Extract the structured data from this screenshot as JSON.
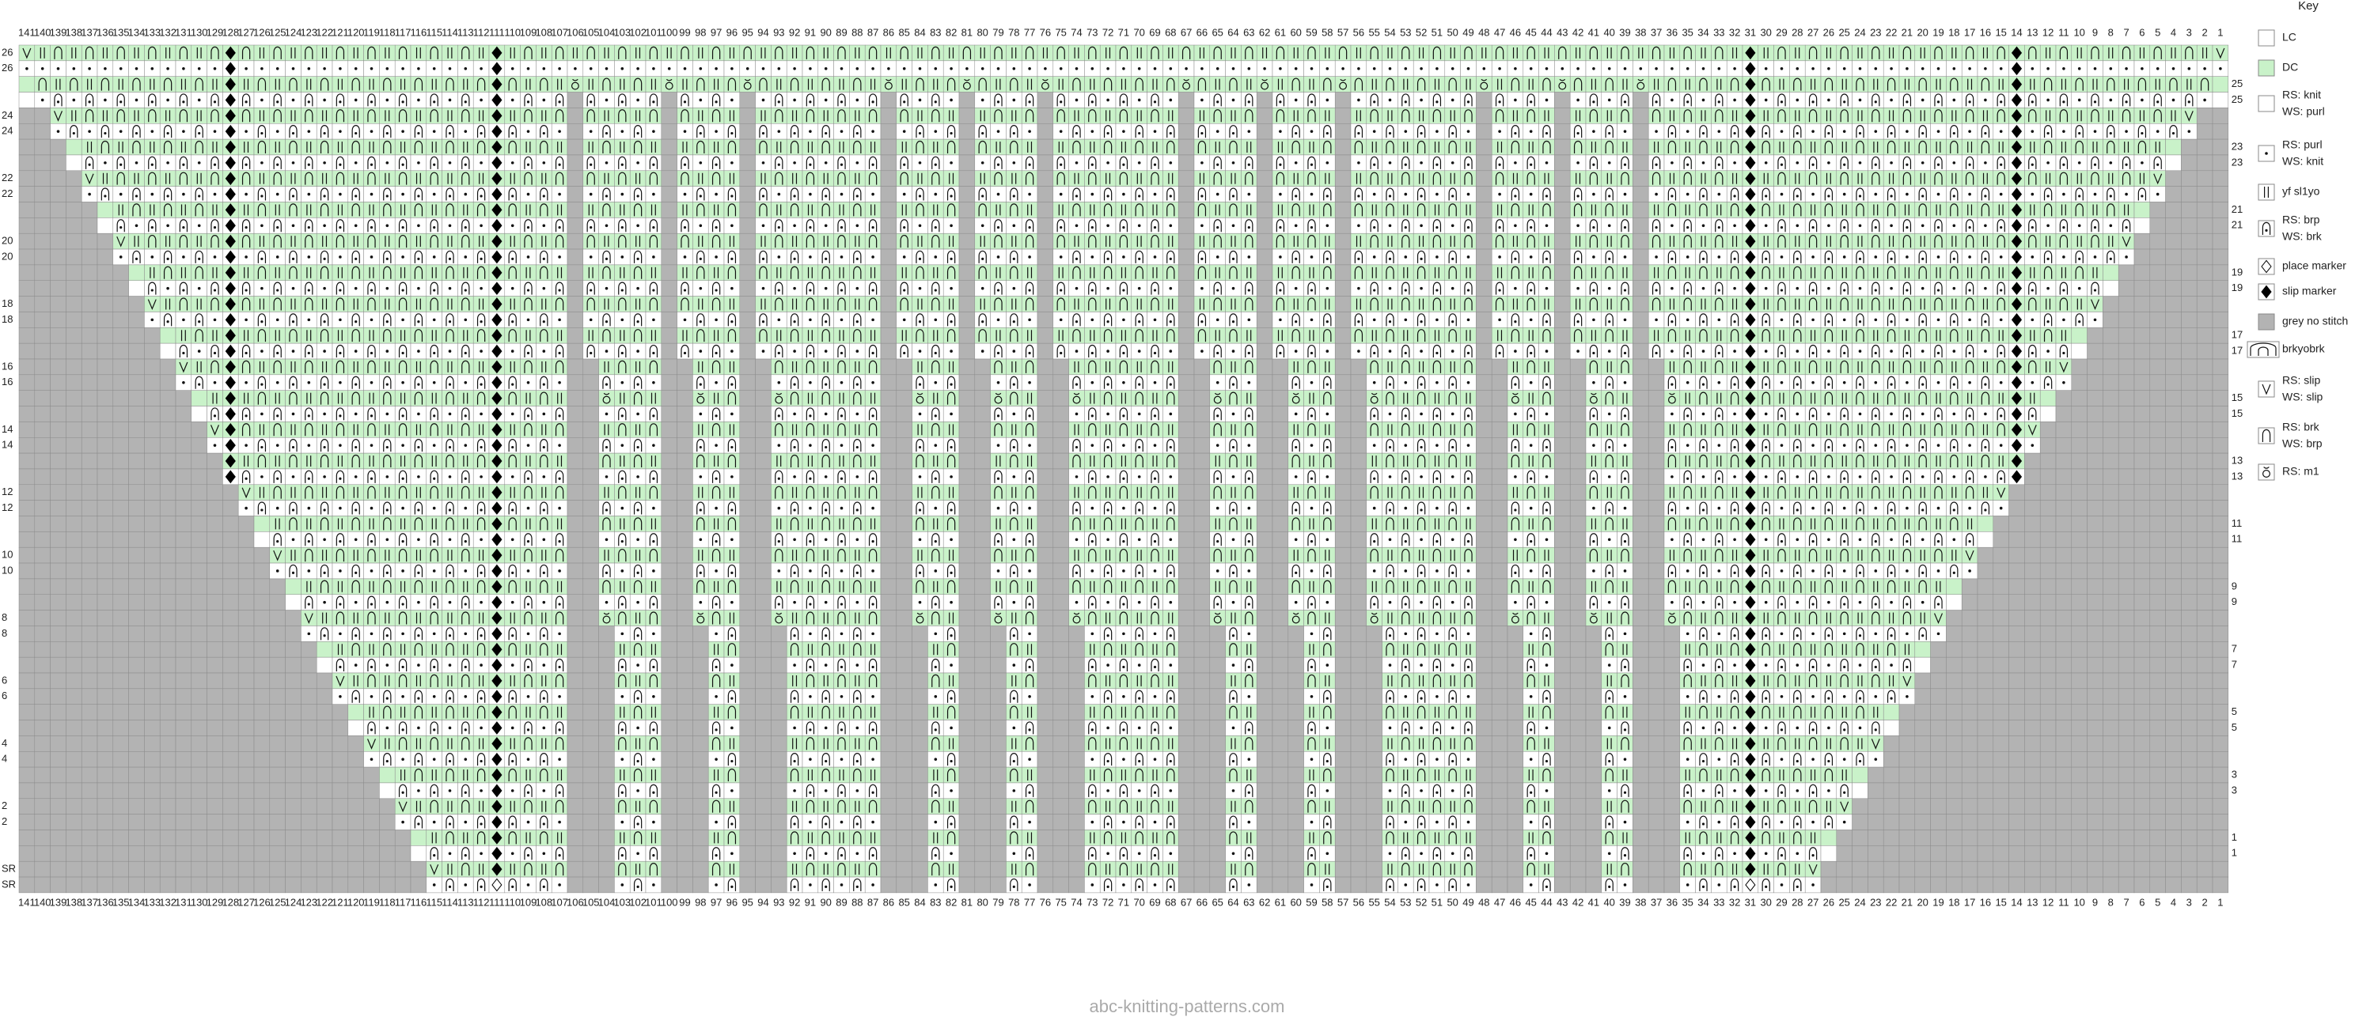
{
  "columns": [
    141,
    140,
    139,
    138,
    137,
    136,
    135,
    134,
    133,
    132,
    131,
    130,
    129,
    128,
    127,
    126,
    125,
    124,
    123,
    122,
    121,
    120,
    119,
    118,
    117,
    116,
    115,
    114,
    113,
    112,
    111,
    110,
    109,
    108,
    107,
    106,
    105,
    104,
    103,
    102,
    101,
    100,
    99,
    98,
    97,
    96,
    95,
    94,
    93,
    92,
    91,
    90,
    89,
    88,
    87,
    86,
    85,
    84,
    83,
    82,
    81,
    80,
    79,
    78,
    77,
    76,
    75,
    74,
    73,
    72,
    71,
    70,
    69,
    68,
    67,
    66,
    65,
    64,
    63,
    62,
    61,
    60,
    59,
    58,
    57,
    56,
    55,
    54,
    53,
    52,
    51,
    50,
    49,
    48,
    47,
    46,
    45,
    44,
    43,
    42,
    41,
    40,
    39,
    38,
    37,
    36,
    35,
    34,
    33,
    32,
    31,
    30,
    29,
    28,
    27,
    26,
    25,
    24,
    23,
    22,
    21,
    20,
    19,
    18,
    17,
    16,
    15,
    14,
    13,
    12,
    11,
    10,
    9,
    8,
    7,
    6,
    5,
    4,
    3,
    2,
    1
  ],
  "row_labels": [
    26,
    26,
    25,
    25,
    24,
    24,
    23,
    23,
    22,
    22,
    21,
    21,
    20,
    20,
    19,
    19,
    18,
    18,
    17,
    17,
    16,
    16,
    15,
    15,
    14,
    14,
    13,
    13,
    12,
    12,
    11,
    11,
    10,
    10,
    9,
    9,
    8,
    8,
    7,
    7,
    6,
    6,
    5,
    5,
    4,
    4,
    3,
    3,
    2,
    2,
    1,
    1,
    "SR",
    "SR"
  ],
  "key": {
    "title": "Key",
    "items": [
      [
        "LC"
      ],
      [
        "DC"
      ],
      [
        "RS: knit",
        "WS: purl"
      ],
      [
        "RS: purl",
        "WS: knit"
      ],
      [
        "yf sl1yo"
      ],
      [
        "RS: brp",
        "WS: brk"
      ],
      [
        "place marker"
      ],
      [
        "slip marker"
      ],
      [
        "grey no stitch"
      ],
      [
        "brkyobrk"
      ],
      [
        "RS: slip",
        "WS: slip"
      ],
      [
        "RS: brk",
        "WS: brp"
      ],
      [
        "RS: m1"
      ]
    ]
  },
  "footer": "abc-knitting-patterns.com"
}
